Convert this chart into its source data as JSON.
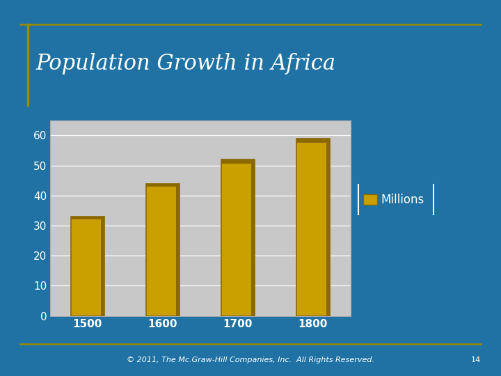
{
  "title": "Population Growth in Africa",
  "categories": [
    "1500",
    "1600",
    "1700",
    "1800"
  ],
  "values": [
    33,
    44,
    52,
    59
  ],
  "bar_color": "#C9A000",
  "bar_edge_color": "#8B6800",
  "bar_top_color": "#8B6800",
  "background_color": "#1F72A3",
  "plot_bg_color": "#C8C8C8",
  "title_color": "#FFFFFF",
  "tick_label_color": "#FFFFFF",
  "legend_label": "Millions",
  "legend_text_color": "#FFFFFF",
  "footer_text": "© 2011, The Mc.Graw-Hill Companies, Inc.  All Rights Reserved.",
  "footer_page": "14",
  "ylim": [
    0,
    65
  ],
  "yticks": [
    0,
    10,
    20,
    30,
    40,
    50,
    60
  ],
  "title_fontsize": 22,
  "tick_fontsize": 11,
  "legend_fontsize": 12,
  "footer_fontsize": 8,
  "accent_line_color": "#9A8B00"
}
